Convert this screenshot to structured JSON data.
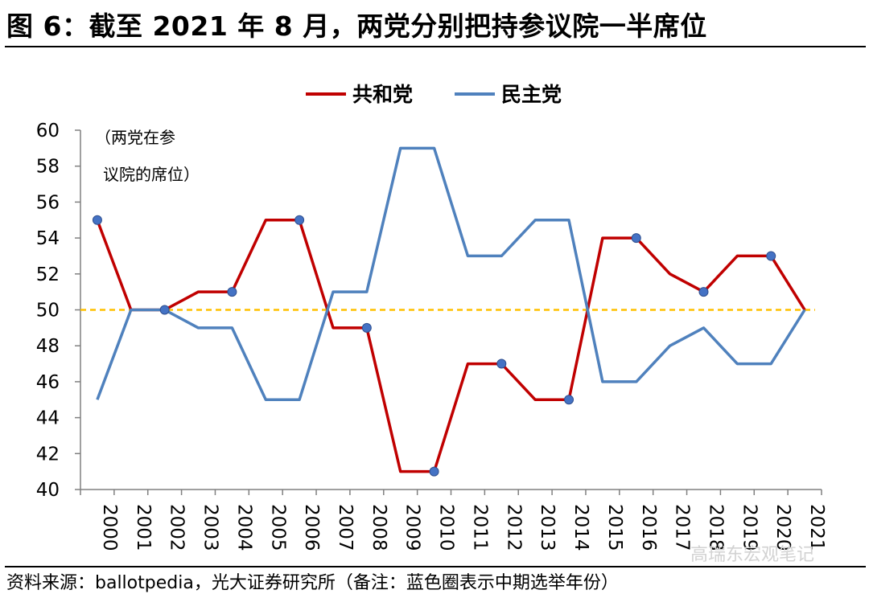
{
  "figure": {
    "title": "图 6：截至 2021 年 8 月，两党分别把持参议院一半席位",
    "source": "资料来源：ballotpedia，光大证券研究所（备注：蓝色圈表示中期选举年份）",
    "watermark": "高瑞东宏观笔记"
  },
  "chart_data": {
    "type": "line",
    "title": "",
    "annotation_lines": [
      "（两党在参",
      "议院的席位）"
    ],
    "categories": [
      "2000",
      "2001",
      "2002",
      "2003",
      "2004",
      "2005",
      "2006",
      "2007",
      "2008",
      "2009",
      "2010",
      "2011",
      "2012",
      "2013",
      "2014",
      "2015",
      "2016",
      "2017",
      "2018",
      "2019",
      "2020",
      "2021"
    ],
    "series": [
      {
        "name": "共和党",
        "color": "#c00000",
        "values": [
          55,
          50,
          50,
          51,
          51,
          55,
          55,
          49,
          49,
          41,
          41,
          47,
          47,
          45,
          45,
          54,
          54,
          52,
          51,
          53,
          53,
          50
        ]
      },
      {
        "name": "民主党",
        "color": "#4f81bd",
        "values": [
          45,
          50,
          50,
          49,
          49,
          45,
          45,
          51,
          51,
          59,
          59,
          53,
          53,
          55,
          55,
          46,
          46,
          48,
          49,
          47,
          47,
          50
        ]
      }
    ],
    "reference_line": {
      "value": 50,
      "color": "#ffc000",
      "style": "dashed"
    },
    "markers": {
      "series": "共和党",
      "indices": [
        0,
        2,
        4,
        6,
        8,
        10,
        12,
        14,
        16,
        18,
        20
      ],
      "color": "#4472c4"
    },
    "ylim": [
      40,
      60
    ],
    "yticks": [
      40,
      42,
      44,
      46,
      48,
      50,
      52,
      54,
      56,
      58,
      60
    ],
    "xlabel": "",
    "ylabel": "",
    "legend_position": "top-center",
    "grid": false
  }
}
